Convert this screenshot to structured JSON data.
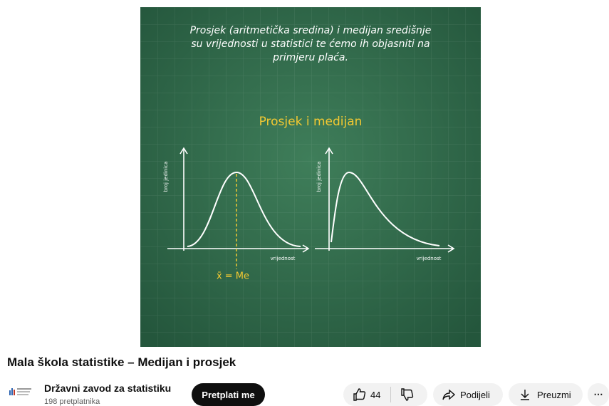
{
  "video": {
    "board": {
      "lines": [
        "Prosjek (aritmetička sredina) i medijan središnje",
        "su vrijednosti u statistici te ćemo ih objasniti na",
        "primjeru plaća."
      ],
      "heading": "Prosjek i medijan",
      "left_chart": {
        "y_label": "broj jedinica",
        "x_label": "vrijednost",
        "annotation": "x̄ = Me"
      },
      "right_chart": {
        "y_label": "broj jedinica",
        "x_label": "vrijednost"
      }
    }
  },
  "title": "Mala škola statistike – Medijan i prosjek",
  "channel": {
    "name": "Državni zavod za statistiku",
    "subscribers": "198 pretplatnika",
    "subscribe": "Pretplati me"
  },
  "actions": {
    "likes": 44,
    "share": "Podijeli",
    "download": "Preuzmi"
  }
}
